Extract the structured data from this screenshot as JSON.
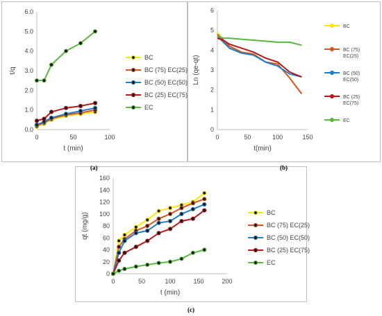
{
  "colors": {
    "BC": "#ffe600",
    "BC75": "#d9541e",
    "BC50": "#1f7ec8",
    "BC25": "#b81818",
    "EC": "#58b83a",
    "marker": "#1a1a1a",
    "axis": "#bfbfbf",
    "text": "#404040"
  },
  "captions": {
    "a": "(a)",
    "b": "(b)",
    "c": "(c)"
  },
  "chart_data": [
    {
      "id": "a",
      "type": "line",
      "title": "",
      "xlabel": "t (min)",
      "ylabel": "t/q",
      "xlim": [
        0,
        100
      ],
      "ylim": [
        0,
        6
      ],
      "xticks": [
        "0",
        "50",
        "100"
      ],
      "yticks": [
        "0.0",
        "1.0",
        "2.0",
        "3.0",
        "4.0",
        "5.0",
        "6.0"
      ],
      "grid": false,
      "legend_position": "right",
      "series": [
        {
          "name": "BC",
          "color": "BC",
          "markers": true,
          "x": [
            0,
            10,
            20,
            40,
            60,
            80
          ],
          "y": [
            0.15,
            0.3,
            0.5,
            0.7,
            0.8,
            0.9
          ]
        },
        {
          "name": "BC (75) EC(25)",
          "color": "BC75",
          "markers": true,
          "x": [
            0,
            10,
            20,
            40,
            60,
            80
          ],
          "y": [
            0.2,
            0.35,
            0.55,
            0.75,
            0.85,
            1.0
          ]
        },
        {
          "name": "BC (50) EC(50)",
          "color": "BC50",
          "markers": true,
          "x": [
            0,
            10,
            20,
            40,
            60,
            80
          ],
          "y": [
            0.25,
            0.4,
            0.6,
            0.8,
            0.95,
            1.1
          ]
        },
        {
          "name": "BC (25) EC(75)",
          "color": "BC25",
          "markers": true,
          "x": [
            0,
            10,
            20,
            40,
            60,
            80
          ],
          "y": [
            0.45,
            0.55,
            0.9,
            1.1,
            1.2,
            1.35
          ]
        },
        {
          "name": "EC",
          "color": "EC",
          "markers": true,
          "x": [
            0,
            10,
            20,
            40,
            60,
            80
          ],
          "y": [
            2.5,
            2.5,
            3.3,
            4.0,
            4.4,
            5.0
          ]
        }
      ]
    },
    {
      "id": "b",
      "type": "line",
      "title": "",
      "xlabel": "t(min)",
      "ylabel": "Ln (qe-qt)",
      "xlim": [
        0,
        150
      ],
      "ylim": [
        0,
        6
      ],
      "xticks": [
        "0",
        "50",
        "100",
        "150"
      ],
      "yticks": [
        "0",
        "1",
        "2",
        "3",
        "4",
        "5",
        "6"
      ],
      "grid": false,
      "legend_position": "right",
      "series": [
        {
          "name": "BC",
          "color": "BC",
          "markers": false,
          "x": [
            0,
            10,
            20,
            40,
            60,
            80,
            100,
            120,
            140
          ],
          "y": [
            4.9,
            4.5,
            4.2,
            3.9,
            3.8,
            3.4,
            3.3,
            2.6,
            1.8
          ]
        },
        {
          "name": "BC (75)\nEC(25)",
          "color": "BC75",
          "markers": false,
          "x": [
            0,
            10,
            20,
            40,
            60,
            80,
            100,
            120,
            140
          ],
          "y": [
            4.8,
            4.5,
            4.2,
            3.9,
            3.8,
            3.4,
            3.3,
            2.6,
            1.8
          ]
        },
        {
          "name": "BC (50)\nEC(50)",
          "color": "BC50",
          "markers": false,
          "x": [
            0,
            10,
            20,
            40,
            60,
            80,
            100,
            120,
            140
          ],
          "y": [
            4.7,
            4.4,
            4.1,
            3.85,
            3.75,
            3.4,
            3.2,
            2.8,
            2.65
          ]
        },
        {
          "name": "BC (25)\nEC(75)",
          "color": "BC25",
          "markers": false,
          "x": [
            0,
            10,
            20,
            40,
            60,
            80,
            100,
            120,
            140
          ],
          "y": [
            4.6,
            4.5,
            4.3,
            4.1,
            3.9,
            3.6,
            3.4,
            2.9,
            2.65
          ]
        },
        {
          "name": "EC",
          "color": "EC",
          "markers": false,
          "x": [
            0,
            10,
            20,
            40,
            60,
            80,
            100,
            120,
            140
          ],
          "y": [
            4.7,
            4.6,
            4.6,
            4.55,
            4.5,
            4.45,
            4.4,
            4.4,
            4.25
          ]
        }
      ]
    },
    {
      "id": "c",
      "type": "line",
      "title": "",
      "xlabel": "t (min)",
      "ylabel": "qt (mg/g)",
      "xlim": [
        0,
        200
      ],
      "ylim": [
        0,
        160
      ],
      "xticks": [
        "0",
        "50",
        "100",
        "150",
        "200"
      ],
      "yticks": [
        "0",
        "20",
        "40",
        "60",
        "80",
        "100",
        "120",
        "140",
        "160"
      ],
      "grid": false,
      "legend_position": "right",
      "series": [
        {
          "name": "BC",
          "color": "BC",
          "markers": true,
          "x": [
            0,
            10,
            20,
            40,
            60,
            80,
            100,
            120,
            140,
            160
          ],
          "y": [
            0,
            55,
            65,
            78,
            90,
            105,
            110,
            115,
            120,
            135
          ]
        },
        {
          "name": "BC (75) EC(25)",
          "color": "BC75",
          "markers": true,
          "x": [
            0,
            10,
            20,
            40,
            60,
            80,
            100,
            120,
            140,
            160
          ],
          "y": [
            0,
            45,
            58,
            72,
            80,
            92,
            100,
            110,
            118,
            125
          ]
        },
        {
          "name": "BC (50) EC(50)",
          "color": "BC50",
          "markers": true,
          "x": [
            0,
            10,
            20,
            40,
            60,
            80,
            100,
            120,
            140,
            160
          ],
          "y": [
            0,
            35,
            55,
            68,
            72,
            85,
            88,
            100,
            108,
            116
          ]
        },
        {
          "name": "BC (25) EC(75)",
          "color": "BC25",
          "markers": true,
          "x": [
            0,
            10,
            20,
            40,
            60,
            80,
            100,
            120,
            140,
            160
          ],
          "y": [
            0,
            22,
            35,
            45,
            55,
            68,
            75,
            88,
            92,
            106
          ]
        },
        {
          "name": "EC",
          "color": "EC",
          "markers": true,
          "x": [
            0,
            10,
            20,
            40,
            60,
            80,
            100,
            120,
            140,
            160
          ],
          "y": [
            0,
            5,
            8,
            12,
            15,
            18,
            20,
            25,
            35,
            40
          ]
        }
      ]
    }
  ]
}
